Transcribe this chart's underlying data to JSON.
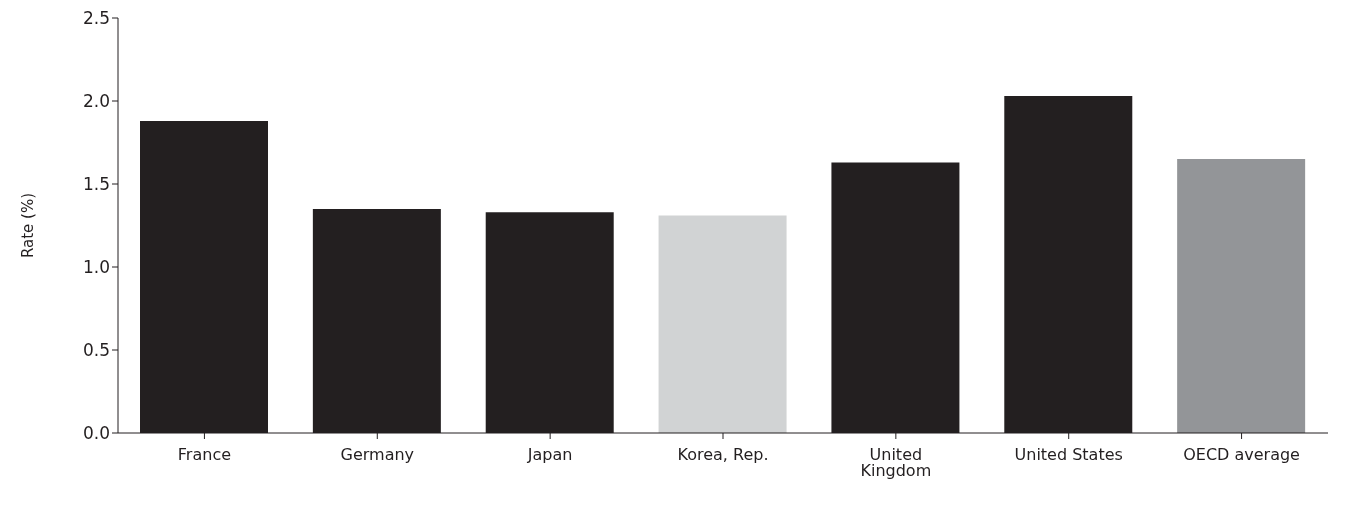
{
  "chart_data": {
    "type": "bar",
    "ylabel": "Rate (%)",
    "categories": [
      "France",
      "Germany",
      "Japan",
      "Korea, Rep.",
      "United Kingdom",
      "United States",
      "OECD average"
    ],
    "values": [
      1.88,
      1.35,
      1.33,
      1.31,
      1.63,
      2.03,
      1.65
    ],
    "colors": [
      "#231f20",
      "#231f20",
      "#231f20",
      "#d1d3d4",
      "#231f20",
      "#231f20",
      "#939598"
    ],
    "ylim": [
      0,
      2.5
    ],
    "yticks": [
      {
        "value": 0,
        "label": "0.0"
      },
      {
        "value": 0.5,
        "label": "0.5"
      },
      {
        "value": 1,
        "label": "1.0"
      },
      {
        "value": 1.5,
        "label": "1.5"
      },
      {
        "value": 2,
        "label": "2.0"
      },
      {
        "value": 2.5,
        "label": "2.5"
      }
    ],
    "grid": false,
    "legend": false
  }
}
